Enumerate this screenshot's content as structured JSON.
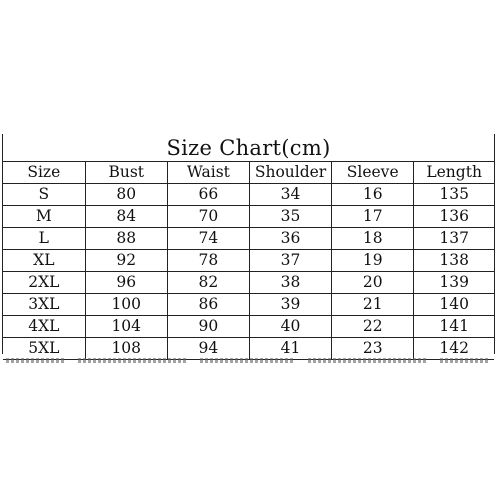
{
  "title": "Size Chart(cm)",
  "headers": [
    "Size",
    "Bust",
    "Waist",
    "Shoulder",
    "Sleeve",
    "Length"
  ],
  "rows": [
    [
      "S",
      "80",
      "66",
      "34",
      "16",
      "135"
    ],
    [
      "M",
      "84",
      "70",
      "35",
      "17",
      "136"
    ],
    [
      "L",
      "88",
      "74",
      "36",
      "18",
      "137"
    ],
    [
      "XL",
      "92",
      "78",
      "37",
      "19",
      "138"
    ],
    [
      "2XL",
      "96",
      "82",
      "38",
      "20",
      "139"
    ],
    [
      "3XL",
      "100",
      "86",
      "39",
      "21",
      "140"
    ],
    [
      "4XL",
      "104",
      "90",
      "40",
      "22",
      "141"
    ],
    [
      "5XL",
      "108",
      "94",
      "41",
      "23",
      "142"
    ]
  ]
}
